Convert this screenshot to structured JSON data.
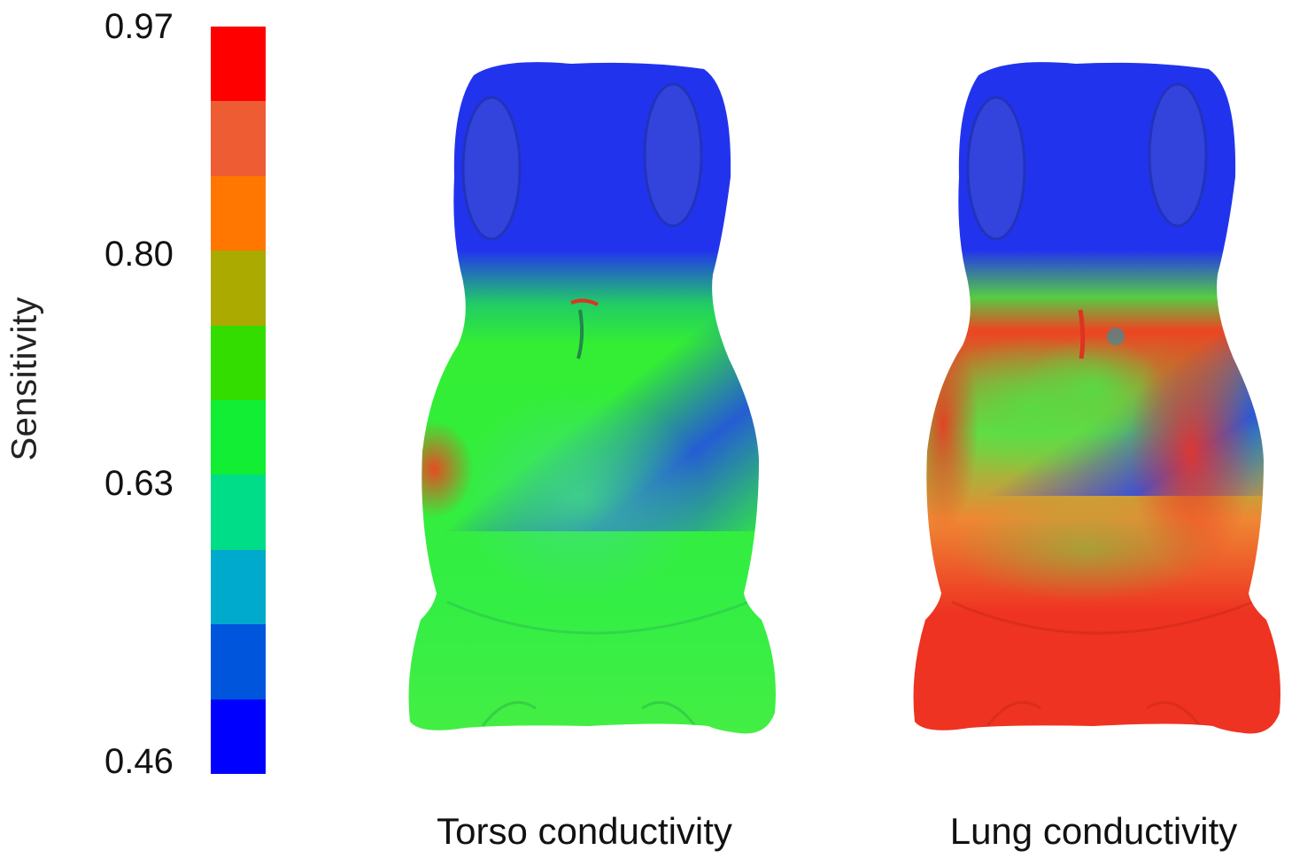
{
  "colorbar": {
    "title": "Sensitivity",
    "ticks": [
      "0.97",
      "0.80",
      "0.63",
      "0.46"
    ],
    "colors": [
      "#ff0000",
      "#ee5c33",
      "#ff7700",
      "#aaaa00",
      "#33dd00",
      "#11ee33",
      "#00dd88",
      "#00aacc",
      "#0055dd",
      "#0000ff"
    ]
  },
  "panels": [
    {
      "caption": "Torso conductivity"
    },
    {
      "caption": "Lung conductivity"
    }
  ]
}
